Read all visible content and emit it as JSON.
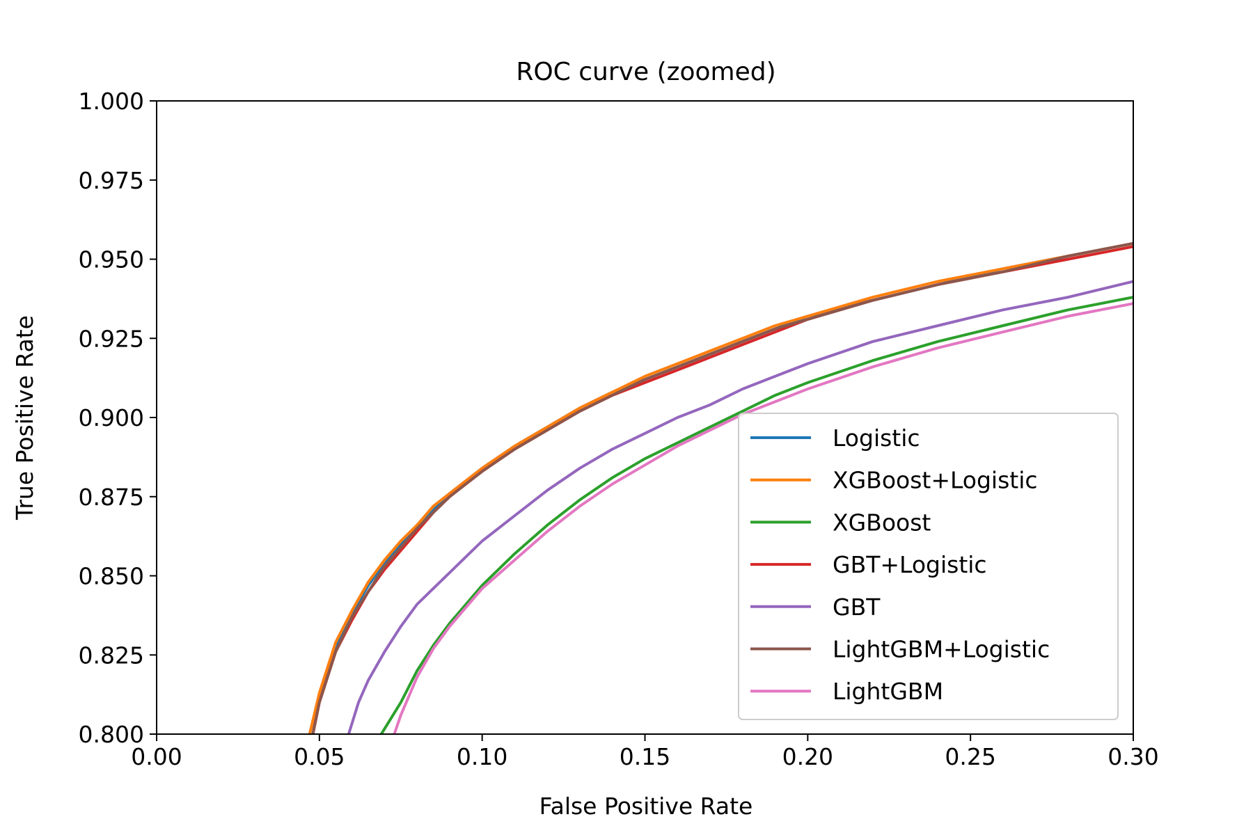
{
  "chart_data": {
    "type": "line",
    "title": "ROC curve (zoomed)",
    "xlabel": "False Positive Rate",
    "ylabel": "True Positive Rate",
    "xlim": [
      0.0,
      0.3
    ],
    "ylim": [
      0.8,
      1.0
    ],
    "x_ticks": [
      "0.00",
      "0.05",
      "0.10",
      "0.15",
      "0.20",
      "0.25",
      "0.30"
    ],
    "y_ticks": [
      "0.800",
      "0.825",
      "0.850",
      "0.875",
      "0.900",
      "0.925",
      "0.950",
      "0.975",
      "1.000"
    ],
    "grid": false,
    "legend_position": "lower-right",
    "series": [
      {
        "name": "Logistic",
        "color": "#1f77b4",
        "points": [
          [
            0.047,
            0.8
          ],
          [
            0.05,
            0.812
          ],
          [
            0.055,
            0.828
          ],
          [
            0.06,
            0.838
          ],
          [
            0.065,
            0.847
          ],
          [
            0.07,
            0.854
          ],
          [
            0.075,
            0.86
          ],
          [
            0.08,
            0.866
          ],
          [
            0.085,
            0.871
          ],
          [
            0.09,
            0.876
          ],
          [
            0.095,
            0.88
          ],
          [
            0.1,
            0.884
          ],
          [
            0.11,
            0.891
          ],
          [
            0.12,
            0.897
          ],
          [
            0.13,
            0.903
          ],
          [
            0.14,
            0.908
          ],
          [
            0.15,
            0.912
          ],
          [
            0.16,
            0.916
          ],
          [
            0.17,
            0.92
          ],
          [
            0.18,
            0.924
          ],
          [
            0.19,
            0.928
          ],
          [
            0.2,
            0.932
          ],
          [
            0.22,
            0.937
          ],
          [
            0.24,
            0.942
          ],
          [
            0.26,
            0.947
          ],
          [
            0.28,
            0.951
          ],
          [
            0.3,
            0.955
          ]
        ]
      },
      {
        "name": "XGBoost+Logistic",
        "color": "#ff7f0e",
        "points": [
          [
            0.047,
            0.8
          ],
          [
            0.05,
            0.813
          ],
          [
            0.055,
            0.829
          ],
          [
            0.06,
            0.839
          ],
          [
            0.065,
            0.848
          ],
          [
            0.07,
            0.855
          ],
          [
            0.075,
            0.861
          ],
          [
            0.08,
            0.866
          ],
          [
            0.085,
            0.872
          ],
          [
            0.09,
            0.876
          ],
          [
            0.095,
            0.88
          ],
          [
            0.1,
            0.884
          ],
          [
            0.11,
            0.891
          ],
          [
            0.12,
            0.897
          ],
          [
            0.13,
            0.903
          ],
          [
            0.14,
            0.908
          ],
          [
            0.15,
            0.913
          ],
          [
            0.16,
            0.917
          ],
          [
            0.17,
            0.921
          ],
          [
            0.18,
            0.925
          ],
          [
            0.19,
            0.929
          ],
          [
            0.2,
            0.932
          ],
          [
            0.22,
            0.938
          ],
          [
            0.24,
            0.943
          ],
          [
            0.26,
            0.947
          ],
          [
            0.28,
            0.951
          ],
          [
            0.3,
            0.955
          ]
        ]
      },
      {
        "name": "XGBoost",
        "color": "#2ca02c",
        "points": [
          [
            0.069,
            0.8
          ],
          [
            0.075,
            0.81
          ],
          [
            0.08,
            0.82
          ],
          [
            0.085,
            0.828
          ],
          [
            0.09,
            0.835
          ],
          [
            0.095,
            0.841
          ],
          [
            0.1,
            0.847
          ],
          [
            0.11,
            0.857
          ],
          [
            0.12,
            0.866
          ],
          [
            0.13,
            0.874
          ],
          [
            0.14,
            0.881
          ],
          [
            0.15,
            0.887
          ],
          [
            0.16,
            0.892
          ],
          [
            0.17,
            0.897
          ],
          [
            0.18,
            0.902
          ],
          [
            0.19,
            0.907
          ],
          [
            0.2,
            0.911
          ],
          [
            0.22,
            0.918
          ],
          [
            0.24,
            0.924
          ],
          [
            0.26,
            0.929
          ],
          [
            0.28,
            0.934
          ],
          [
            0.3,
            0.938
          ]
        ]
      },
      {
        "name": "GBT+Logistic",
        "color": "#d62728",
        "points": [
          [
            0.048,
            0.8
          ],
          [
            0.05,
            0.81
          ],
          [
            0.055,
            0.826
          ],
          [
            0.06,
            0.836
          ],
          [
            0.065,
            0.845
          ],
          [
            0.07,
            0.852
          ],
          [
            0.075,
            0.858
          ],
          [
            0.08,
            0.864
          ],
          [
            0.085,
            0.87
          ],
          [
            0.09,
            0.875
          ],
          [
            0.095,
            0.879
          ],
          [
            0.1,
            0.883
          ],
          [
            0.11,
            0.89
          ],
          [
            0.12,
            0.896
          ],
          [
            0.13,
            0.902
          ],
          [
            0.14,
            0.907
          ],
          [
            0.15,
            0.911
          ],
          [
            0.16,
            0.915
          ],
          [
            0.17,
            0.919
          ],
          [
            0.18,
            0.923
          ],
          [
            0.19,
            0.927
          ],
          [
            0.2,
            0.931
          ],
          [
            0.22,
            0.937
          ],
          [
            0.24,
            0.942
          ],
          [
            0.26,
            0.946
          ],
          [
            0.28,
            0.95
          ],
          [
            0.3,
            0.954
          ]
        ]
      },
      {
        "name": "GBT",
        "color": "#9467bd",
        "points": [
          [
            0.059,
            0.8
          ],
          [
            0.062,
            0.81
          ],
          [
            0.065,
            0.817
          ],
          [
            0.07,
            0.826
          ],
          [
            0.075,
            0.834
          ],
          [
            0.08,
            0.841
          ],
          [
            0.085,
            0.846
          ],
          [
            0.09,
            0.851
          ],
          [
            0.095,
            0.856
          ],
          [
            0.1,
            0.861
          ],
          [
            0.11,
            0.869
          ],
          [
            0.12,
            0.877
          ],
          [
            0.13,
            0.884
          ],
          [
            0.14,
            0.89
          ],
          [
            0.15,
            0.895
          ],
          [
            0.16,
            0.9
          ],
          [
            0.17,
            0.904
          ],
          [
            0.18,
            0.909
          ],
          [
            0.19,
            0.913
          ],
          [
            0.2,
            0.917
          ],
          [
            0.22,
            0.924
          ],
          [
            0.24,
            0.929
          ],
          [
            0.26,
            0.934
          ],
          [
            0.28,
            0.938
          ],
          [
            0.3,
            0.943
          ]
        ]
      },
      {
        "name": "LightGBM+Logistic",
        "color": "#8c564b",
        "points": [
          [
            0.048,
            0.8
          ],
          [
            0.05,
            0.81
          ],
          [
            0.055,
            0.826
          ],
          [
            0.06,
            0.837
          ],
          [
            0.065,
            0.845
          ],
          [
            0.07,
            0.853
          ],
          [
            0.075,
            0.859
          ],
          [
            0.08,
            0.865
          ],
          [
            0.085,
            0.87
          ],
          [
            0.09,
            0.875
          ],
          [
            0.095,
            0.879
          ],
          [
            0.1,
            0.883
          ],
          [
            0.11,
            0.89
          ],
          [
            0.12,
            0.896
          ],
          [
            0.13,
            0.902
          ],
          [
            0.14,
            0.907
          ],
          [
            0.15,
            0.912
          ],
          [
            0.16,
            0.916
          ],
          [
            0.17,
            0.92
          ],
          [
            0.18,
            0.924
          ],
          [
            0.19,
            0.928
          ],
          [
            0.2,
            0.931
          ],
          [
            0.22,
            0.937
          ],
          [
            0.24,
            0.942
          ],
          [
            0.26,
            0.946
          ],
          [
            0.28,
            0.951
          ],
          [
            0.3,
            0.955
          ]
        ]
      },
      {
        "name": "LightGBM",
        "color": "#e377c2",
        "points": [
          [
            0.073,
            0.8
          ],
          [
            0.075,
            0.806
          ],
          [
            0.08,
            0.818
          ],
          [
            0.085,
            0.827
          ],
          [
            0.09,
            0.834
          ],
          [
            0.095,
            0.84
          ],
          [
            0.1,
            0.846
          ],
          [
            0.11,
            0.855
          ],
          [
            0.12,
            0.864
          ],
          [
            0.13,
            0.872
          ],
          [
            0.14,
            0.879
          ],
          [
            0.15,
            0.885
          ],
          [
            0.16,
            0.891
          ],
          [
            0.17,
            0.896
          ],
          [
            0.18,
            0.901
          ],
          [
            0.19,
            0.905
          ],
          [
            0.2,
            0.909
          ],
          [
            0.22,
            0.916
          ],
          [
            0.24,
            0.922
          ],
          [
            0.26,
            0.927
          ],
          [
            0.28,
            0.932
          ],
          [
            0.3,
            0.936
          ]
        ]
      }
    ]
  }
}
